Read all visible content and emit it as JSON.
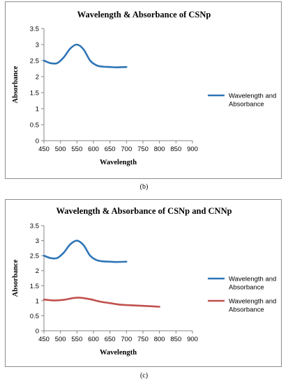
{
  "chart_data": [
    {
      "type": "line",
      "title": "Wavelength & Absorbance of CSNp",
      "xlabel": "Wavelength",
      "ylabel": "Absorbance",
      "xlim": [
        450,
        900
      ],
      "ylim": [
        0,
        3.5
      ],
      "xticks": [
        "450",
        "500",
        "550",
        "600",
        "650",
        "700",
        "750",
        "800",
        "850",
        "900"
      ],
      "yticks": [
        "0",
        "0.5",
        "1",
        "1.5",
        "2",
        "2.5",
        "3",
        "3.5"
      ],
      "grid": false,
      "legend_position": "right",
      "series": [
        {
          "name": "Wavelength and Absorbance",
          "color": "#2e75b6",
          "x": [
            450,
            470,
            490,
            510,
            530,
            550,
            570,
            590,
            610,
            630,
            650,
            670,
            700
          ],
          "y": [
            2.5,
            2.42,
            2.42,
            2.6,
            2.88,
            3.0,
            2.85,
            2.5,
            2.35,
            2.31,
            2.3,
            2.29,
            2.3
          ]
        }
      ],
      "panel_label": "(b)"
    },
    {
      "type": "line",
      "title": "Wavelength & Absorbance of CSNp and CNNp",
      "xlabel": "Wavelength",
      "ylabel": "Absorbance",
      "xlim": [
        450,
        900
      ],
      "ylim": [
        0,
        3.5
      ],
      "xticks": [
        "450",
        "500",
        "550",
        "600",
        "650",
        "700",
        "750",
        "800",
        "850",
        "900"
      ],
      "yticks": [
        "0",
        "0.5",
        "1",
        "1.5",
        "2",
        "2.5",
        "3",
        "3.5"
      ],
      "grid": false,
      "legend_position": "right",
      "series": [
        {
          "name": "Wavelength and Absorbance",
          "color": "#2e75b6",
          "x": [
            450,
            470,
            490,
            510,
            530,
            550,
            570,
            590,
            610,
            630,
            650,
            670,
            700
          ],
          "y": [
            2.5,
            2.42,
            2.42,
            2.6,
            2.88,
            3.0,
            2.85,
            2.5,
            2.35,
            2.31,
            2.3,
            2.29,
            2.3
          ]
        },
        {
          "name": "Wavelength and Absorbance",
          "color": "#c0504d",
          "x": [
            450,
            480,
            510,
            540,
            560,
            590,
            620,
            650,
            680,
            710,
            750,
            800
          ],
          "y": [
            1.04,
            1.01,
            1.03,
            1.09,
            1.1,
            1.05,
            0.97,
            0.92,
            0.87,
            0.85,
            0.83,
            0.8
          ]
        }
      ],
      "panel_label": "(c)"
    }
  ]
}
